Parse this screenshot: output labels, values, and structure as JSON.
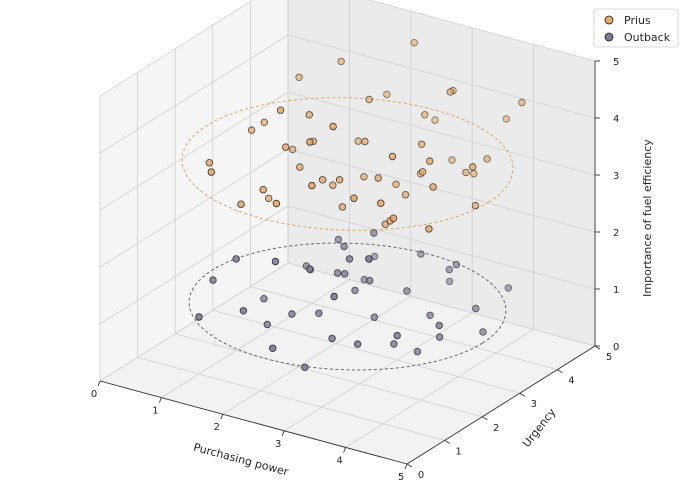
{
  "chart_data": {
    "type": "scatter",
    "projection": "3d",
    "title": "",
    "xlabel": "Purchasing power",
    "ylabel": "Urgency",
    "zlabel": "Importance of fuel efficiency",
    "xlim": [
      0,
      5
    ],
    "ylim": [
      0,
      5
    ],
    "zlim": [
      0,
      5
    ],
    "x_ticks": [
      "0",
      "1",
      "2",
      "3",
      "4",
      "5"
    ],
    "y_ticks": [
      "0",
      "1",
      "2",
      "3",
      "4",
      "5"
    ],
    "z_ticks": [
      "0",
      "1",
      "2",
      "3",
      "4",
      "5"
    ],
    "grid": true,
    "legend_position": "top-right",
    "series": [
      {
        "name": "Prius",
        "color": "#e8a765",
        "ring": {
          "center": [
            2.5,
            2.5,
            3.5
          ],
          "radius": 2.3
        },
        "points": [
          [
            1.2,
            1.0,
            3.6
          ],
          [
            0.8,
            1.6,
            3.4
          ],
          [
            1.0,
            2.4,
            3.7
          ],
          [
            1.3,
            3.0,
            3.2
          ],
          [
            1.5,
            1.3,
            3.0
          ],
          [
            1.8,
            2.0,
            3.8
          ],
          [
            1.7,
            2.9,
            3.5
          ],
          [
            2.0,
            3.6,
            3.3
          ],
          [
            2.2,
            1.1,
            3.3
          ],
          [
            2.4,
            2.0,
            3.4
          ],
          [
            2.6,
            2.8,
            3.8
          ],
          [
            2.3,
            3.4,
            4.2
          ],
          [
            2.8,
            1.8,
            3.6
          ],
          [
            3.0,
            2.5,
            3.4
          ],
          [
            3.2,
            3.3,
            3.2
          ],
          [
            2.9,
            3.9,
            3.9
          ],
          [
            3.4,
            1.2,
            3.7
          ],
          [
            3.5,
            2.0,
            3.0
          ],
          [
            3.6,
            2.7,
            3.6
          ],
          [
            3.3,
            4.0,
            4.4
          ],
          [
            3.8,
            1.6,
            3.3
          ],
          [
            3.9,
            2.4,
            4.0
          ],
          [
            4.0,
            3.2,
            3.5
          ],
          [
            3.7,
            3.9,
            3.1
          ],
          [
            4.2,
            2.0,
            3.8
          ],
          [
            4.4,
            2.8,
            3.2
          ],
          [
            4.1,
            3.6,
            3.6
          ],
          [
            4.5,
            1.4,
            3.4
          ],
          [
            1.6,
            3.8,
            4.5
          ],
          [
            2.1,
            4.2,
            3.9
          ],
          [
            2.7,
            4.5,
            3.5
          ],
          [
            3.1,
            4.3,
            3.0
          ],
          [
            1.9,
            1.7,
            4.6
          ],
          [
            2.5,
            1.5,
            4.3
          ],
          [
            3.0,
            1.3,
            4.8
          ],
          [
            3.6,
            1.9,
            4.2
          ],
          [
            2.2,
            2.6,
            3.0
          ],
          [
            2.6,
            2.2,
            2.9
          ],
          [
            1.4,
            2.2,
            2.7
          ],
          [
            3.3,
            2.2,
            2.8
          ],
          [
            4.6,
            2.4,
            4.1
          ],
          [
            4.3,
            4.2,
            4.4
          ],
          [
            3.8,
            4.6,
            3.8
          ],
          [
            2.0,
            2.3,
            4.3
          ],
          [
            2.4,
            3.1,
            3.0
          ],
          [
            2.8,
            3.3,
            2.9
          ],
          [
            3.4,
            3.0,
            3.9
          ],
          [
            1.6,
            2.7,
            3.1
          ],
          [
            2.9,
            0.9,
            3.9
          ],
          [
            3.9,
            1.1,
            3.8
          ],
          [
            0.9,
            2.9,
            3.6
          ],
          [
            1.1,
            3.5,
            4.2
          ],
          [
            3.5,
            3.6,
            4.6
          ],
          [
            2.3,
            4.6,
            4.7
          ],
          [
            1.8,
            1.4,
            3.3
          ],
          [
            3.2,
            2.9,
            3.0
          ]
        ]
      },
      {
        "name": "Outback",
        "color": "#7a7a96",
        "ring": {
          "center": [
            2.5,
            2.5,
            1.0
          ],
          "radius": 2.2
        },
        "points": [
          [
            1.0,
            1.0,
            1.0
          ],
          [
            0.8,
            1.7,
            1.3
          ],
          [
            1.2,
            2.4,
            0.8
          ],
          [
            1.4,
            3.2,
            1.1
          ],
          [
            1.6,
            1.2,
            1.2
          ],
          [
            1.9,
            2.0,
            0.9
          ],
          [
            1.7,
            2.8,
            1.3
          ],
          [
            2.1,
            3.6,
            0.9
          ],
          [
            2.2,
            1.0,
            0.8
          ],
          [
            2.4,
            1.9,
            1.1
          ],
          [
            2.5,
            2.7,
            1.2
          ],
          [
            2.3,
            3.4,
            1.4
          ],
          [
            2.8,
            1.6,
            0.9
          ],
          [
            3.0,
            2.4,
            1.0
          ],
          [
            3.1,
            3.1,
            1.2
          ],
          [
            2.9,
            3.8,
            1.5
          ],
          [
            3.4,
            1.3,
            1.1
          ],
          [
            3.5,
            2.1,
            0.8
          ],
          [
            3.6,
            2.9,
            1.0
          ],
          [
            3.3,
            3.9,
            1.3
          ],
          [
            3.8,
            1.7,
            1.2
          ],
          [
            4.0,
            2.5,
            0.9
          ],
          [
            4.1,
            3.3,
            1.1
          ],
          [
            4.3,
            2.0,
            1.4
          ],
          [
            1.3,
            1.5,
            1.9
          ],
          [
            2.0,
            1.4,
            2.1
          ],
          [
            2.7,
            2.1,
            1.8
          ],
          [
            3.2,
            1.0,
            2.0
          ],
          [
            1.5,
            2.0,
            0.6
          ],
          [
            2.6,
            1.2,
            0.5
          ],
          [
            3.7,
            2.4,
            0.6
          ],
          [
            4.4,
            3.0,
            0.9
          ],
          [
            1.1,
            3.8,
            0.7
          ],
          [
            1.9,
            4.2,
            1.0
          ],
          [
            3.0,
            4.4,
            0.8
          ],
          [
            4.2,
            4.0,
            1.2
          ],
          [
            2.4,
            2.4,
            1.6
          ],
          [
            2.6,
            2.9,
            1.7
          ],
          [
            2.8,
            2.6,
            1.5
          ],
          [
            2.2,
            2.9,
            1.8
          ],
          [
            3.6,
            3.6,
            1.6
          ],
          [
            1.8,
            3.4,
            1.6
          ],
          [
            2.9,
            1.9,
            2.2
          ],
          [
            2.5,
            3.2,
            2.0
          ]
        ]
      }
    ]
  }
}
